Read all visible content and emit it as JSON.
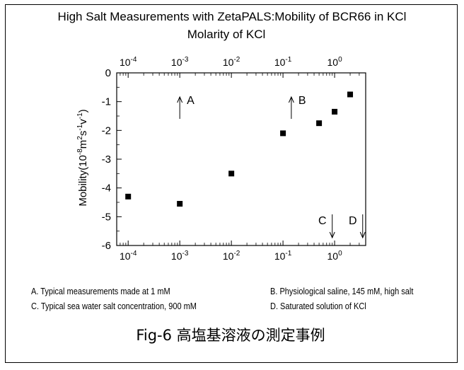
{
  "page": {
    "caption": "Fig-6 高塩基溶液の測定事例"
  },
  "chart_data": {
    "type": "scatter",
    "title": "High Salt Measurements with ZetaPALS:Mobility of BCR66 in KCl",
    "top_axis_label": "Molarity of KCl",
    "ylabel": "Mobility(10-8m2s-1v-1)",
    "xlabel": "",
    "x_scale": "log",
    "xlim": [
      6e-05,
      4
    ],
    "ylim": [
      -6,
      0
    ],
    "x_ticks": [
      0.0001,
      0.001,
      0.01,
      0.1,
      1
    ],
    "y_ticks": [
      0,
      -1,
      -2,
      -3,
      -4,
      -5,
      -6
    ],
    "series": [
      {
        "points": [
          {
            "x": 0.0001,
            "y": -4.3
          },
          {
            "x": 0.001,
            "y": -4.55
          },
          {
            "x": 0.01,
            "y": -3.5
          },
          {
            "x": 0.1,
            "y": -2.1
          },
          {
            "x": 0.5,
            "y": -1.75
          },
          {
            "x": 1,
            "y": -1.35
          },
          {
            "x": 2,
            "y": -0.75
          }
        ]
      }
    ],
    "annotations": [
      {
        "label": "A",
        "x": 0.001,
        "direction": "up"
      },
      {
        "label": "B",
        "x": 0.145,
        "direction": "up"
      },
      {
        "label": "C",
        "x": 0.9,
        "direction": "down"
      },
      {
        "label": "D",
        "x": 3.5,
        "direction": "down"
      }
    ],
    "notes": [
      "A. Typical measurements made at 1 mM",
      "B. Physiological saline, 145 mM, high salt",
      "C. Typical sea water salt concentration, 900 mM",
      "D. Saturated solution of KCl"
    ],
    "grid": false
  }
}
